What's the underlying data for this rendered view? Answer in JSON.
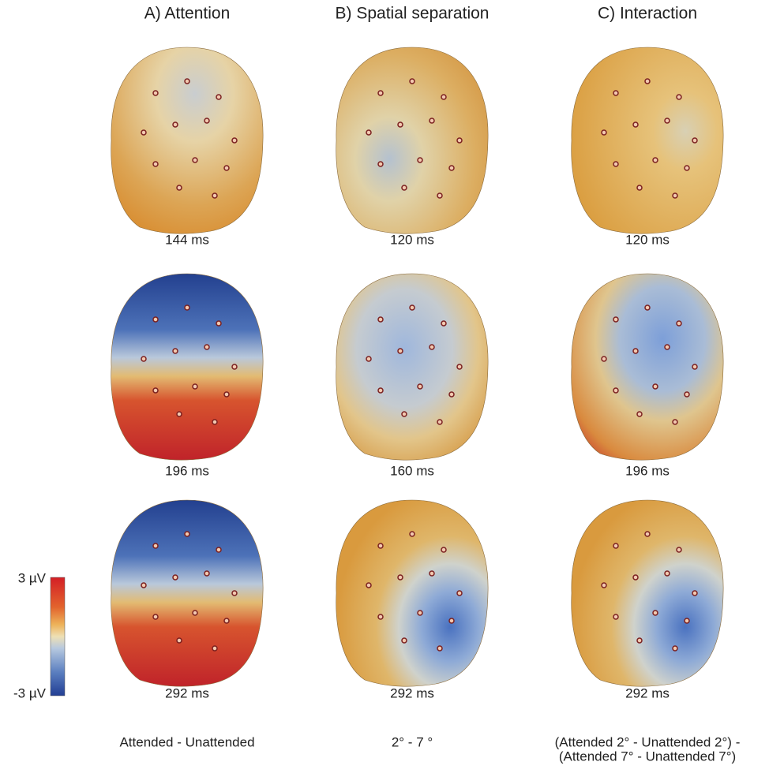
{
  "columns": [
    {
      "title": "A) Attention",
      "panels": [
        "144 ms",
        "196 ms",
        "292 ms"
      ],
      "condition": [
        "Attended - Unattended"
      ]
    },
    {
      "title": "B) Spatial separation",
      "panels": [
        "120 ms",
        "160 ms",
        "292 ms"
      ],
      "condition": [
        "2° - 7 °"
      ]
    },
    {
      "title": "C) Interaction",
      "panels": [
        "120 ms",
        "196 ms",
        "292 ms"
      ],
      "condition": [
        "(Attended 2° - Unattended 2°) -",
        "(Attended 7° - Unattended 7°)"
      ]
    }
  ],
  "colorbar": {
    "max_label": "3 µV",
    "min_label": "-3 µV"
  }
}
